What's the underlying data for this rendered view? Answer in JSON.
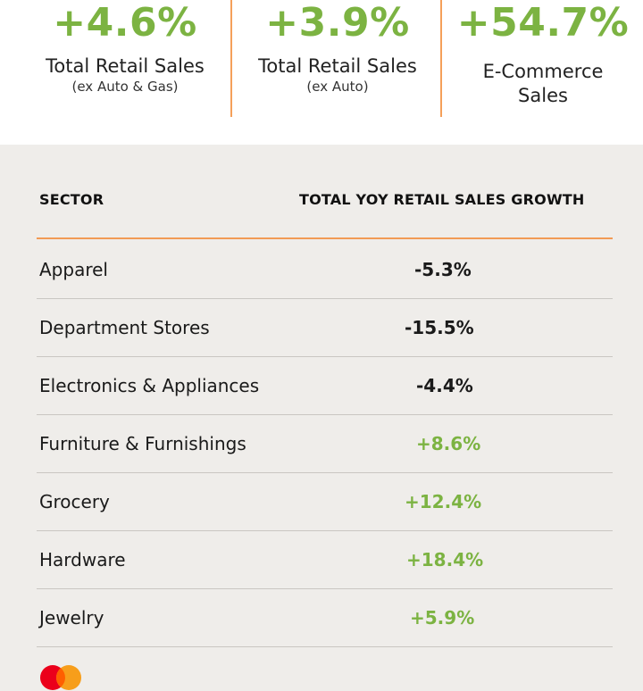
{
  "kpis": [
    {
      "value": "+4.6%",
      "label": "Total Retail Sales",
      "sub": "(ex Auto & Gas)"
    },
    {
      "value": "+3.9%",
      "label": "Total Retail Sales",
      "sub": "(ex Auto)"
    },
    {
      "value": "+54.7%",
      "label_line1": "E-Commerce",
      "label_line2": "Sales"
    }
  ],
  "table": {
    "headers": {
      "sector": "SECTOR",
      "growth": "TOTAL YOY RETAIL SALES GROWTH"
    },
    "rows": [
      {
        "sector": "Apparel",
        "growth": "-5.3%",
        "trend": "negative"
      },
      {
        "sector": "Department Stores",
        "growth": "-15.5%",
        "trend": "negative"
      },
      {
        "sector": "Electronics & Appliances",
        "growth": "-4.4%",
        "trend": "negative"
      },
      {
        "sector": "Furniture & Furnishings",
        "growth": "+8.6%",
        "trend": "positive"
      },
      {
        "sector": "Grocery",
        "growth": "+12.4%",
        "trend": "positive"
      },
      {
        "sector": "Hardware",
        "growth": "+18.4%",
        "trend": "positive"
      },
      {
        "sector": "Jewelry",
        "growth": "+5.9%",
        "trend": "positive"
      }
    ]
  },
  "colors": {
    "positive": "#7cb342",
    "negative": "#1a1a1a",
    "accent_orange": "#f29b55",
    "panel_bg": "#efedea"
  },
  "footer": {
    "logo_icon": "mastercard-logo-icon"
  }
}
